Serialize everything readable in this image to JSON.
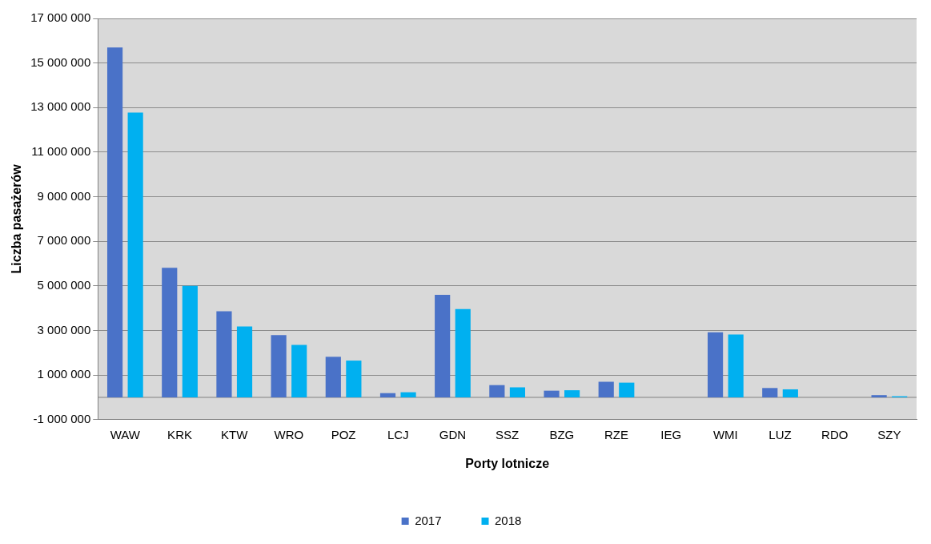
{
  "chart_data": {
    "type": "bar",
    "xlabel": "Porty lotnicze",
    "ylabel": "Liczba pasażerów",
    "categories": [
      "WAW",
      "KRK",
      "KTW",
      "WRO",
      "POZ",
      "LCJ",
      "GDN",
      "SSZ",
      "BZG",
      "RZE",
      "IEG",
      "WMI",
      "LUZ",
      "RDO",
      "SZY"
    ],
    "series": [
      {
        "name": "2017",
        "color": "#4a72c8",
        "values": [
          15700000,
          5810000,
          3860000,
          2790000,
          1820000,
          190000,
          4600000,
          550000,
          300000,
          700000,
          0,
          2920000,
          420000,
          0,
          100000
        ]
      },
      {
        "name": "2018",
        "color": "#00b0f0",
        "values": [
          12780000,
          5000000,
          3180000,
          2350000,
          1650000,
          230000,
          3960000,
          450000,
          320000,
          660000,
          0,
          2820000,
          360000,
          0,
          50000
        ]
      }
    ],
    "ylim": [
      -1000000,
      17000000
    ],
    "yticks": [
      {
        "value": -1000000,
        "label": "-1 000 000"
      },
      {
        "value": 1000000,
        "label": "1 000 000"
      },
      {
        "value": 3000000,
        "label": "3 000 000"
      },
      {
        "value": 5000000,
        "label": "5 000 000"
      },
      {
        "value": 7000000,
        "label": "7 000 000"
      },
      {
        "value": 9000000,
        "label": "9 000 000"
      },
      {
        "value": 11000000,
        "label": "11 000 000"
      },
      {
        "value": 13000000,
        "label": "13 000 000"
      },
      {
        "value": 15000000,
        "label": "15 000 000"
      },
      {
        "value": 17000000,
        "label": "17 000 000"
      }
    ],
    "grid": "y",
    "legend": "bottom"
  }
}
